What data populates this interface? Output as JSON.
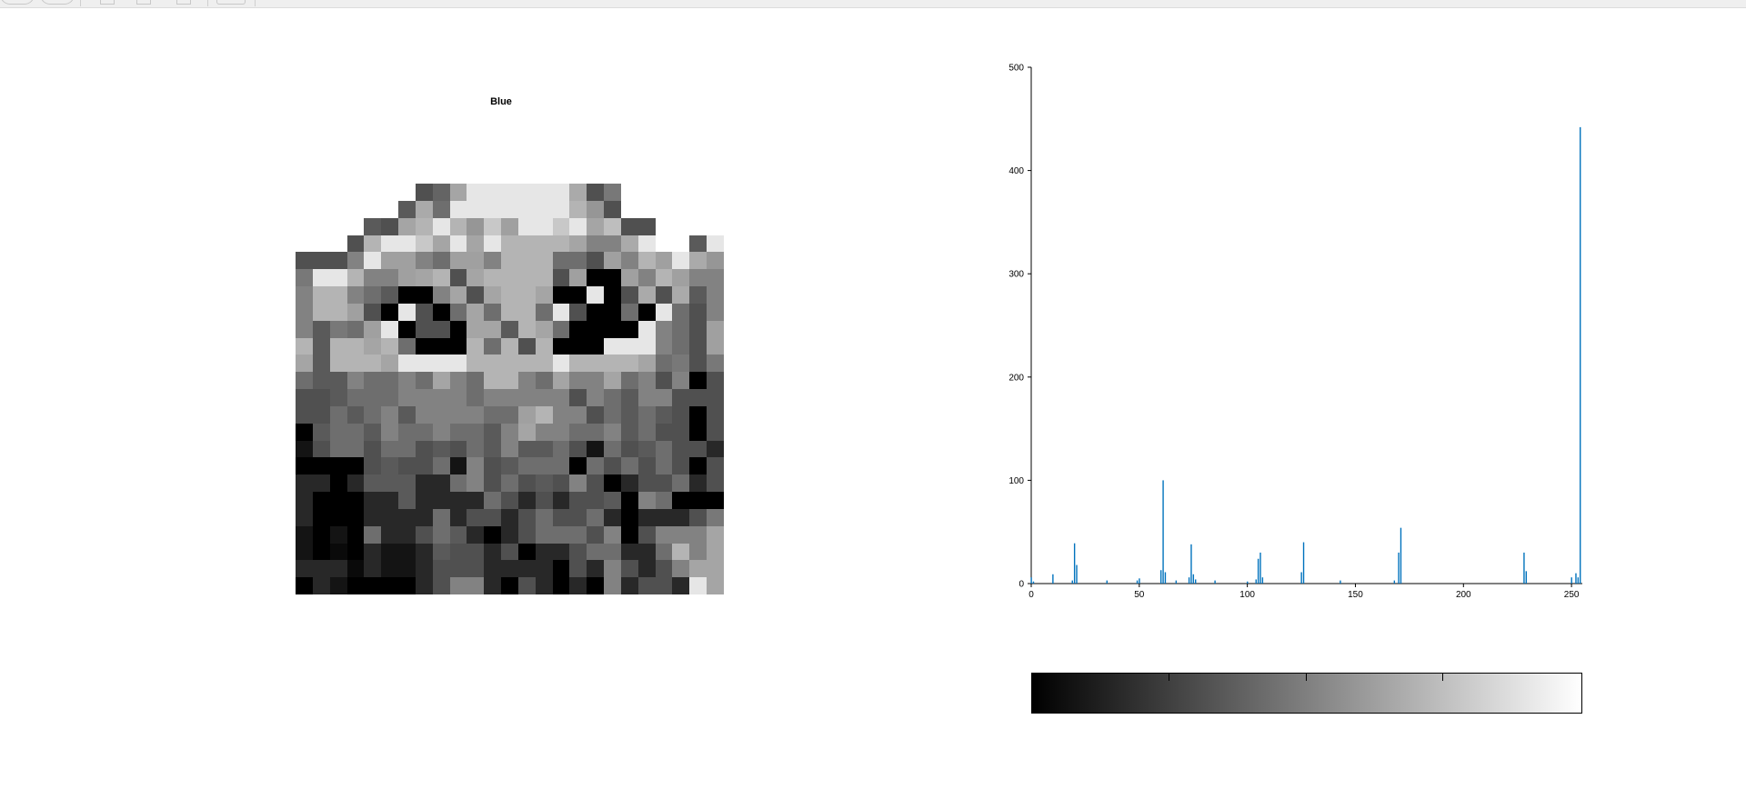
{
  "title": "Blue",
  "image_pixels": {
    "rows": 24,
    "cols": 25,
    "grid": [
      [
        null,
        null,
        null,
        null,
        null,
        null,
        null,
        80,
        100,
        165,
        230,
        230,
        230,
        230,
        230,
        230,
        170,
        80,
        120,
        null,
        null,
        null,
        null,
        null,
        null
      ],
      [
        null,
        null,
        null,
        null,
        null,
        null,
        90,
        170,
        110,
        230,
        230,
        230,
        230,
        230,
        230,
        230,
        180,
        150,
        80,
        null,
        null,
        null,
        null,
        null,
        null
      ],
      [
        null,
        null,
        null,
        null,
        90,
        80,
        165,
        180,
        230,
        180,
        150,
        200,
        160,
        230,
        230,
        200,
        230,
        165,
        190,
        80,
        80,
        null,
        null,
        null,
        null
      ],
      [
        null,
        null,
        null,
        80,
        180,
        230,
        230,
        200,
        165,
        230,
        165,
        230,
        180,
        180,
        180,
        180,
        165,
        130,
        130,
        170,
        230,
        null,
        null,
        90,
        230
      ],
      [
        80,
        80,
        80,
        130,
        230,
        160,
        160,
        130,
        110,
        160,
        160,
        130,
        180,
        180,
        180,
        110,
        110,
        80,
        160,
        130,
        180,
        160,
        230,
        170,
        150
      ],
      [
        120,
        230,
        230,
        180,
        130,
        130,
        160,
        165,
        180,
        80,
        165,
        180,
        180,
        180,
        180,
        80,
        160,
        0,
        0,
        160,
        130,
        180,
        160,
        130,
        130
      ],
      [
        130,
        180,
        180,
        130,
        110,
        90,
        0,
        0,
        130,
        165,
        80,
        165,
        180,
        180,
        165,
        0,
        0,
        230,
        0,
        80,
        170,
        80,
        170,
        90,
        130
      ],
      [
        130,
        180,
        180,
        160,
        80,
        0,
        230,
        80,
        0,
        110,
        165,
        110,
        180,
        180,
        110,
        230,
        80,
        0,
        0,
        110,
        0,
        230,
        110,
        80,
        130
      ],
      [
        130,
        90,
        120,
        110,
        160,
        230,
        0,
        80,
        80,
        0,
        165,
        165,
        90,
        180,
        165,
        110,
        0,
        0,
        0,
        0,
        230,
        130,
        110,
        80,
        160
      ],
      [
        180,
        90,
        180,
        180,
        165,
        180,
        110,
        0,
        0,
        0,
        180,
        110,
        180,
        80,
        180,
        0,
        0,
        0,
        230,
        230,
        230,
        130,
        110,
        80,
        160
      ],
      [
        165,
        90,
        180,
        180,
        180,
        165,
        230,
        230,
        230,
        230,
        180,
        180,
        180,
        180,
        180,
        230,
        180,
        180,
        180,
        180,
        165,
        110,
        120,
        80,
        120
      ],
      [
        110,
        90,
        90,
        130,
        110,
        110,
        130,
        110,
        165,
        130,
        110,
        180,
        180,
        130,
        110,
        165,
        130,
        130,
        165,
        110,
        130,
        80,
        130,
        0,
        80
      ],
      [
        80,
        80,
        90,
        110,
        110,
        110,
        130,
        130,
        130,
        130,
        110,
        130,
        130,
        130,
        130,
        130,
        80,
        130,
        110,
        90,
        130,
        130,
        80,
        80,
        80
      ],
      [
        80,
        80,
        110,
        90,
        110,
        130,
        90,
        130,
        130,
        130,
        130,
        110,
        110,
        160,
        180,
        130,
        130,
        80,
        110,
        90,
        110,
        90,
        80,
        0,
        80
      ],
      [
        0,
        90,
        110,
        110,
        90,
        130,
        110,
        110,
        130,
        110,
        110,
        90,
        130,
        165,
        130,
        130,
        110,
        110,
        130,
        90,
        110,
        80,
        80,
        0,
        80
      ],
      [
        20,
        80,
        110,
        110,
        80,
        110,
        110,
        80,
        90,
        80,
        110,
        90,
        130,
        90,
        90,
        110,
        80,
        20,
        110,
        80,
        90,
        110,
        80,
        80,
        40
      ],
      [
        0,
        0,
        0,
        0,
        80,
        90,
        80,
        80,
        110,
        20,
        130,
        80,
        90,
        110,
        110,
        110,
        0,
        110,
        80,
        110,
        80,
        110,
        80,
        0,
        80
      ],
      [
        40,
        40,
        0,
        40,
        90,
        90,
        90,
        40,
        40,
        110,
        130,
        80,
        110,
        80,
        90,
        80,
        130,
        80,
        0,
        40,
        80,
        80,
        110,
        40,
        80
      ],
      [
        40,
        0,
        0,
        0,
        40,
        40,
        90,
        40,
        40,
        40,
        40,
        110,
        80,
        40,
        80,
        40,
        80,
        80,
        90,
        0,
        130,
        110,
        0,
        0,
        0
      ],
      [
        40,
        0,
        0,
        0,
        40,
        40,
        40,
        40,
        110,
        40,
        80,
        80,
        40,
        80,
        110,
        80,
        80,
        110,
        40,
        0,
        40,
        40,
        40,
        80,
        120
      ],
      [
        20,
        0,
        20,
        0,
        110,
        40,
        40,
        80,
        110,
        90,
        40,
        0,
        40,
        80,
        110,
        110,
        110,
        80,
        130,
        0,
        80,
        130,
        130,
        130,
        165
      ],
      [
        20,
        0,
        10,
        0,
        40,
        20,
        20,
        40,
        90,
        80,
        80,
        40,
        80,
        0,
        40,
        40,
        80,
        110,
        110,
        40,
        40,
        110,
        180,
        130,
        165
      ],
      [
        40,
        40,
        40,
        10,
        40,
        20,
        20,
        40,
        80,
        80,
        80,
        40,
        40,
        40,
        40,
        0,
        80,
        40,
        130,
        80,
        40,
        80,
        130,
        165,
        165
      ],
      [
        0,
        40,
        20,
        0,
        0,
        0,
        0,
        40,
        80,
        130,
        130,
        40,
        0,
        80,
        40,
        0,
        40,
        0,
        130,
        40,
        80,
        80,
        40,
        230,
        165
      ]
    ]
  },
  "chart_data": {
    "type": "bar",
    "title": "",
    "xlabel": "",
    "ylabel": "",
    "xlim": [
      0,
      255
    ],
    "ylim": [
      0,
      500
    ],
    "xticks": [
      0,
      50,
      100,
      150,
      200,
      250
    ],
    "yticks": [
      0,
      100,
      200,
      300,
      400,
      500
    ],
    "bar_color": "#0072bd",
    "bars": [
      {
        "x": 0,
        "y": 6
      },
      {
        "x": 1,
        "y": 2
      },
      {
        "x": 10,
        "y": 9
      },
      {
        "x": 19,
        "y": 3
      },
      {
        "x": 20,
        "y": 39
      },
      {
        "x": 21,
        "y": 18
      },
      {
        "x": 35,
        "y": 3
      },
      {
        "x": 49,
        "y": 3
      },
      {
        "x": 50,
        "y": 5
      },
      {
        "x": 60,
        "y": 13
      },
      {
        "x": 61,
        "y": 100
      },
      {
        "x": 62,
        "y": 11
      },
      {
        "x": 67,
        "y": 3
      },
      {
        "x": 73,
        "y": 6
      },
      {
        "x": 74,
        "y": 38
      },
      {
        "x": 75,
        "y": 9
      },
      {
        "x": 76,
        "y": 4
      },
      {
        "x": 85,
        "y": 3
      },
      {
        "x": 100,
        "y": 2
      },
      {
        "x": 104,
        "y": 4
      },
      {
        "x": 105,
        "y": 24
      },
      {
        "x": 106,
        "y": 30
      },
      {
        "x": 107,
        "y": 6
      },
      {
        "x": 125,
        "y": 11
      },
      {
        "x": 126,
        "y": 40
      },
      {
        "x": 143,
        "y": 3
      },
      {
        "x": 168,
        "y": 3
      },
      {
        "x": 170,
        "y": 30
      },
      {
        "x": 171,
        "y": 54
      },
      {
        "x": 228,
        "y": 30
      },
      {
        "x": 229,
        "y": 12
      },
      {
        "x": 250,
        "y": 6
      },
      {
        "x": 252,
        "y": 10
      },
      {
        "x": 253,
        "y": 6
      },
      {
        "x": 254,
        "y": 442
      }
    ]
  },
  "colorbar": {
    "colormap": "gray",
    "from_color": "#000000",
    "to_color": "#ffffff"
  }
}
